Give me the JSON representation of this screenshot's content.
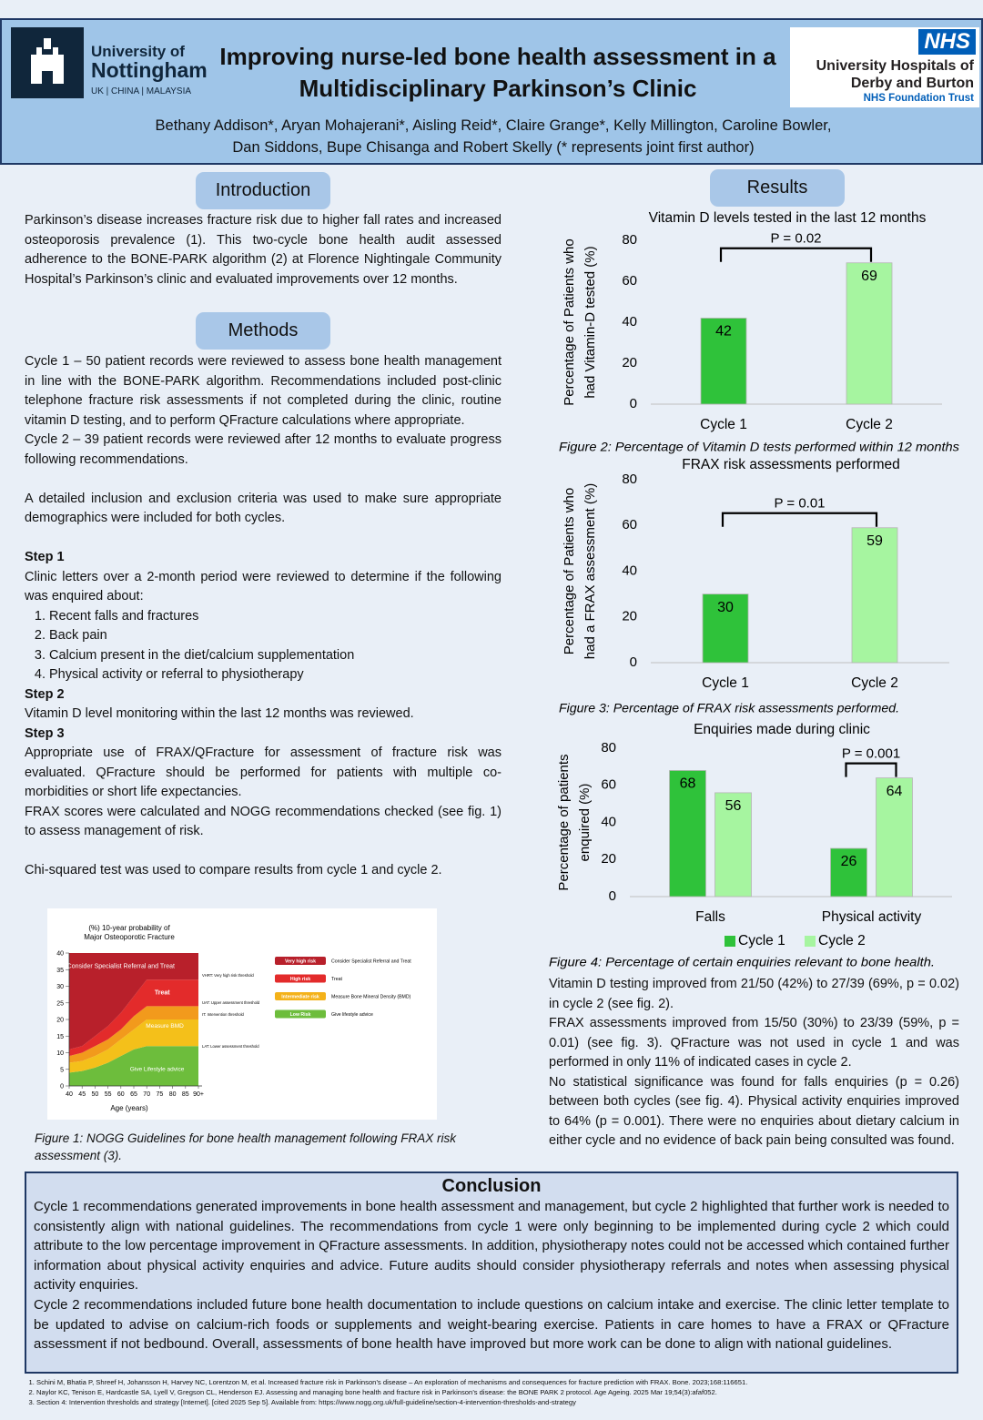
{
  "header": {
    "university": {
      "line1": "University of",
      "line2": "Nottingham",
      "campuses": "UK | CHINA | MALAYSIA"
    },
    "title": [
      "Improving nurse-led bone health assessment in a",
      "Multidisciplinary Parkinson’s Clinic"
    ],
    "nhs": {
      "badge": "NHS",
      "lines": [
        "University Hospitals of",
        "Derby and Burton",
        "NHS Foundation Trust"
      ]
    },
    "authors": [
      "Bethany Addison*, Aryan Mohajerani*, Aisling Reid*, Claire Grange*, Kelly Millington, Caroline Bowler,",
      "Dan Siddons, Bupe Chisanga and Robert Skelly (* represents joint first author)"
    ]
  },
  "introduction": {
    "heading": "Introduction",
    "text": "Parkinson’s disease increases fracture risk due to higher fall rates and increased osteoporosis prevalence (1). This two-cycle bone health audit assessed adherence to the BONE-PARK algorithm (2) at Florence Nightingale Community Hospital’s Parkinson’s clinic and evaluated improvements over 12 months."
  },
  "methods": {
    "heading": "Methods",
    "cycles": [
      "Cycle 1 – 50 patient records were reviewed to assess bone health management in line with the BONE-PARK algorithm. Recommendations included post-clinic telephone fracture risk assessments if not completed during the clinic, routine vitamin D testing, and to perform QFracture calculations where appropriate.",
      "Cycle 2 – 39 patient records were reviewed after 12 months to evaluate progress following recommendations."
    ],
    "criteria": "A detailed inclusion and exclusion criteria was used to make sure appropriate demographics were included for both cycles.",
    "steps": [
      {
        "title": "Step 1",
        "text": [
          "Clinic letters over a 2-month period were reviewed to determine if the following was enquired about:"
        ],
        "items": [
          "Recent falls and fractures",
          "Back pain",
          "Calcium present in the diet/calcium supplementation",
          "Physical activity or referral to physiotherapy"
        ]
      },
      {
        "title": "Step 2",
        "text": [
          "Vitamin D level monitoring within the last 12 months was reviewed."
        ],
        "items": []
      },
      {
        "title": "Step 3",
        "text": [
          "Appropriate use of FRAX/QFracture for assessment of fracture risk was evaluated. QFracture should be performed for patients with multiple co-morbidities or short life expectancies.",
          "FRAX scores were calculated and NOGG recommendations checked (see fig. 1) to assess management of risk."
        ],
        "items": []
      }
    ],
    "statistics": "Chi-squared test was used to compare results from cycle 1 and cycle 2."
  },
  "figure1": {
    "title": [
      "(%) 10-year probability of",
      "Major Osteoporotic Fracture"
    ],
    "ylim": [
      0,
      40
    ],
    "yticks": [
      0,
      5,
      10,
      15,
      20,
      25,
      30,
      35,
      40
    ],
    "xlim": [
      40,
      90
    ],
    "xticks": [
      40,
      45,
      50,
      55,
      60,
      65,
      70,
      75,
      80,
      85,
      {
        "value": 90,
        "label": "90+"
      }
    ],
    "x_label": "Age (years)",
    "zones": [
      "Consider Specialist Referral and Treat",
      "Treat",
      "Measure BMD",
      "Give Lifestyle advice"
    ],
    "thresholds": [
      "VHRT: Very high risk threshold",
      "UAT: Upper assessment threshold",
      "IT: Intervention threshold",
      "LAT: Lower assessment threshold"
    ],
    "legend": [
      {
        "risk": "Very high risk",
        "action": "Consider Specialist Referral and Treat",
        "color": "#b8202b"
      },
      {
        "risk": "High risk",
        "action": "Treat",
        "color": "#e32b2b"
      },
      {
        "risk": "Intermediate risk",
        "action": "Measure Bone Mineral Density (BMD)",
        "color": "#f4b21a"
      },
      {
        "risk": "Low Risk",
        "action": "Give lifestyle advice",
        "color": "#6dbd3c"
      }
    ],
    "caption": "Figure 1: NOGG Guidelines for bone health management following FRAX risk assessment (3)."
  },
  "results": {
    "heading": "Results",
    "text": [
      "Vitamin D testing improved from 21/50 (42%) to 27/39 (69%, p = 0.02) in cycle 2 (see fig. 2).",
      "FRAX assessments improved from 15/50 (30%) to 23/39 (59%, p = 0.01) (see fig. 3). QFracture was not used in cycle 1 and was performed in only 11% of indicated cases in cycle 2.",
      "No statistical significance was found for falls enquiries (p = 0.26) between both cycles (see fig. 4). Physical activity enquiries improved to 64% (p = 0.001). There were no enquiries about dietary calcium in either cycle and no evidence of back pain being consulted was found."
    ]
  },
  "chart_data": [
    {
      "type": "bar",
      "title": "Vitamin D levels tested in the last 12 months",
      "y_label": [
        "Percentage of Patients who",
        "had Vitamin-D tested (%)"
      ],
      "categories": [
        "Cycle 1",
        "Cycle 2"
      ],
      "values": [
        42,
        69
      ],
      "colors": [
        "#2fc23a",
        "#a6f5a0"
      ],
      "ylim": [
        0,
        80
      ],
      "yticks": [
        0,
        20,
        40,
        60,
        80
      ],
      "grid": false,
      "annotation": "P = 0.02",
      "caption": "Figure 2: Percentage of Vitamin D tests performed within 12 months"
    },
    {
      "type": "bar",
      "title": "FRAX risk assessments performed",
      "y_label": [
        "Percentage of Patients who",
        "had a FRAX assessment (%)"
      ],
      "categories": [
        "Cycle 1",
        "Cycle 2"
      ],
      "values": [
        30,
        59
      ],
      "colors": [
        "#2fc23a",
        "#a6f5a0"
      ],
      "ylim": [
        0,
        80
      ],
      "yticks": [
        0,
        20,
        40,
        60,
        80
      ],
      "grid": false,
      "annotation": "P = 0.01",
      "caption": "Figure 3: Percentage of FRAX risk assessments performed."
    },
    {
      "type": "grouped-bar",
      "title": "Enquiries made during clinic",
      "y_label": [
        "Percentage of patients",
        "enquired (%)"
      ],
      "categories": [
        "Falls",
        "Physical activity"
      ],
      "series": [
        {
          "name": "Cycle 1",
          "color": "#2fc23a",
          "values": [
            68,
            26
          ]
        },
        {
          "name": "Cycle 2",
          "color": "#a6f5a0",
          "values": [
            56,
            64
          ]
        }
      ],
      "ylim": [
        0,
        80
      ],
      "yticks": [
        0,
        20,
        40,
        60,
        80
      ],
      "grid": false,
      "legend": "bottom",
      "annotation": "P = 0.001",
      "caption": "Figure 4:  Percentage of certain enquiries relevant to bone health."
    }
  ],
  "conclusion": {
    "heading": "Conclusion",
    "text": [
      "Cycle 1 recommendations generated improvements in bone health assessment and management, but cycle 2 highlighted that further work is needed to consistently align with national guidelines. The recommendations from cycle 1 were only beginning to be implemented during cycle 2 which could attribute to the low percentage improvement in QFracture assessments. In addition, physiotherapy notes could not be accessed which contained further information about physical activity enquiries and advice. Future audits should consider physiotherapy referrals and notes when assessing physical activity enquiries.",
      "Cycle 2 recommendations included future bone health documentation to include questions on calcium intake and exercise. The clinic letter template to be updated to advise on calcium-rich foods or supplements and weight-bearing exercise. Patients in care homes to have a FRAX or QFracture assessment if not bedbound. Overall, assessments of bone health have improved but more work can be done to align with national guidelines."
    ]
  },
  "references": [
    "Schini M, Bhatia P, Shreef H, Johansson H, Harvey NC, Lorentzon M, et al. Increased fracture risk in Parkinson’s disease – An exploration of mechanisms and consequences for fracture prediction with FRAX. Bone. 2023;168:116651.",
    "Naylor KC, Tenison E, Hardcastle SA, Lyell V, Gregson CL, Henderson EJ. Assessing and managing bone health and fracture risk in Parkinson’s disease: the BONE PARK 2 protocol. Age Ageing. 2025 Mar 19;54(3):afaf052.",
    "Section 4: Intervention thresholds and strategy [Internet]. [cited 2025 Sep 5]. Available from: https://www.nogg.org.uk/full-guideline/section-4-intervention-thresholds-and-strategy"
  ]
}
